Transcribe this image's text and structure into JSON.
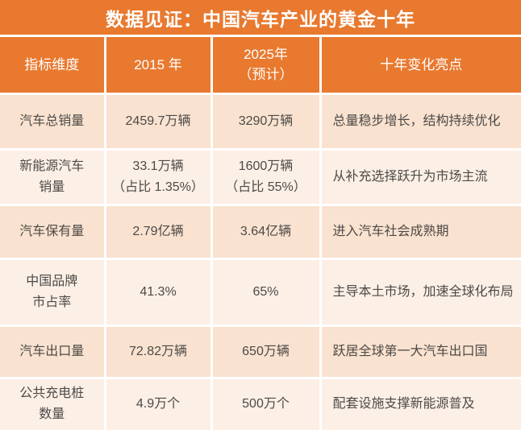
{
  "title": "数据见证：中国汽车产业的黄金十年",
  "colors": {
    "accent_orange": "#E8792F",
    "row_dark": "#F9E2D0",
    "row_light": "#FCEFE6",
    "divider_white": "#FFFFFF",
    "body_text": "#4D4A47",
    "header_text": "#FFFFFF"
  },
  "table": {
    "headers": [
      {
        "label": "指标维度"
      },
      {
        "label": "2015 年"
      },
      {
        "label": "2025年\n（预计）"
      },
      {
        "label": "十年变化亮点"
      }
    ],
    "rows": [
      {
        "metric": "汽车总销量",
        "v2015": "2459.7万辆",
        "v2025": "3290万辆",
        "highlight": "总量稳步增长，结构持续优化"
      },
      {
        "metric": "新能源汽车\n销量",
        "v2015": "33.1万辆\n（占比 1.35%）",
        "v2025": "1600万辆\n（占比 55%）",
        "highlight": "从补充选择跃升为市场主流"
      },
      {
        "metric": "汽车保有量",
        "v2015": "2.79亿辆",
        "v2025": "3.64亿辆",
        "highlight": "进入汽车社会成熟期"
      },
      {
        "metric": "中国品牌\n市占率",
        "v2015": "41.3%",
        "v2025": "65%",
        "highlight": "主导本土市场，加速全球化布局"
      },
      {
        "metric": "汽车出口量",
        "v2015": "72.82万辆",
        "v2025": "650万辆",
        "highlight": "跃居全球第一大汽车出口国"
      },
      {
        "metric": "公共充电桩\n数量",
        "v2015": "4.9万个",
        "v2025": "500万个",
        "highlight": "配套设施支撑新能源普及"
      }
    ]
  },
  "chart_data": {
    "type": "table",
    "title": "数据见证：中国汽车产业的黄金十年",
    "columns": [
      "指标维度",
      "2015 年",
      "2025年（预计）",
      "十年变化亮点"
    ],
    "rows": [
      [
        "汽车总销量",
        "2459.7万辆",
        "3290万辆",
        "总量稳步增长，结构持续优化"
      ],
      [
        "新能源汽车销量",
        "33.1万辆（占比 1.35%）",
        "1600万辆（占比 55%）",
        "从补充选择跃升为市场主流"
      ],
      [
        "汽车保有量",
        "2.79亿辆",
        "3.64亿辆",
        "进入汽车社会成熟期"
      ],
      [
        "中国品牌市占率",
        "41.3%",
        "65%",
        "主导本土市场，加速全球化布局"
      ],
      [
        "汽车出口量",
        "72.82万辆",
        "650万辆",
        "跃居全球第一大汽车出口国"
      ],
      [
        "公共充电桩数量",
        "4.9万个",
        "500万个",
        "配套设施支撑新能源普及"
      ]
    ],
    "layout": {
      "header_fill": "#E8792F",
      "row_fills": [
        "#F9E2D0",
        "#FCEFE6"
      ],
      "grid": "white 3px dividers"
    }
  }
}
